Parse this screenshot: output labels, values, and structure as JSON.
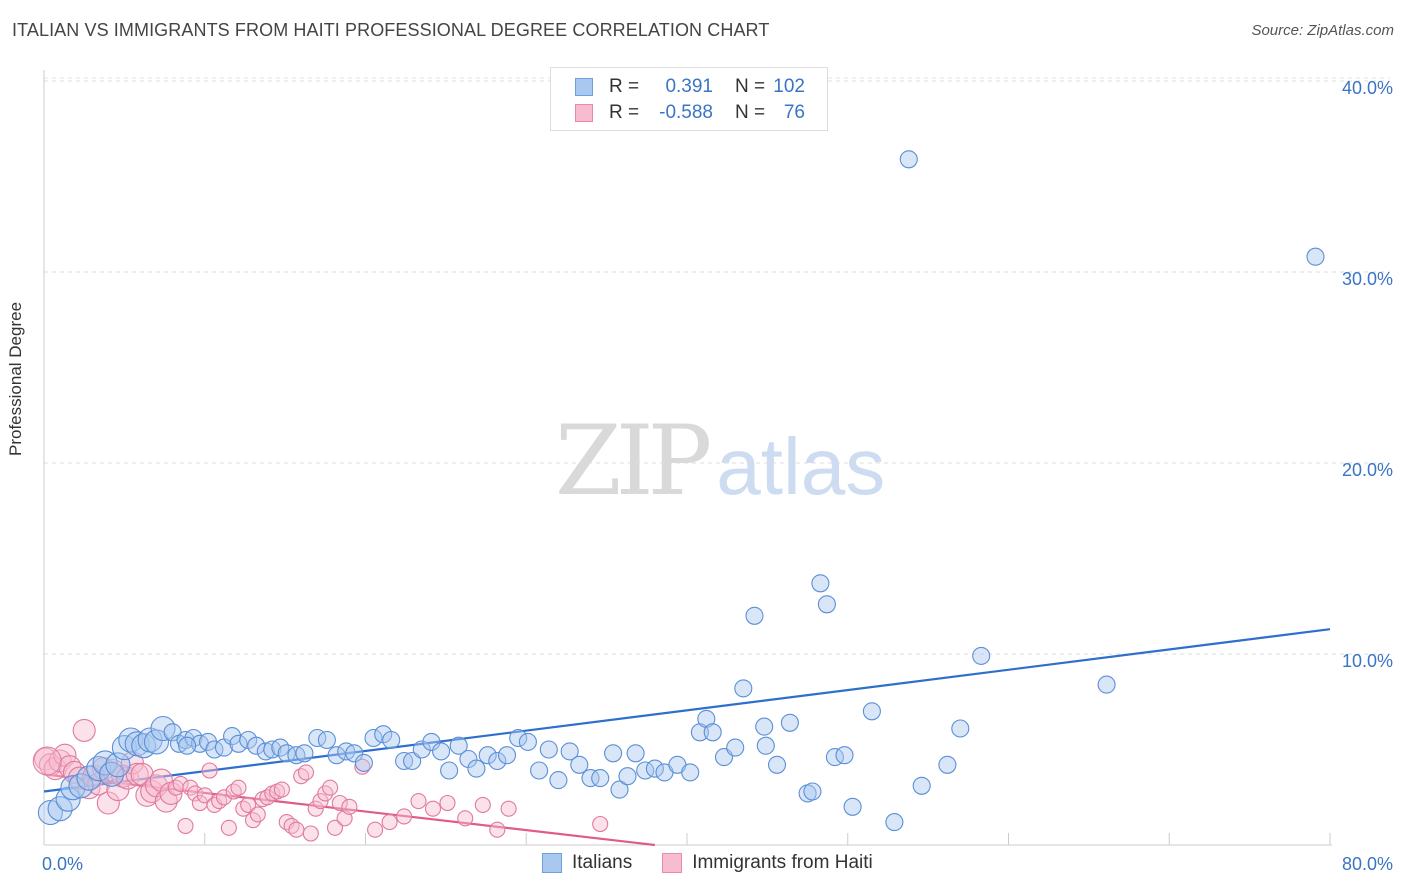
{
  "title": "ITALIAN VS IMMIGRANTS FROM HAITI PROFESSIONAL DEGREE CORRELATION CHART",
  "source": "Source: ZipAtlas.com",
  "watermark": {
    "zip": "ZIP",
    "atlas": "atlas"
  },
  "legend": {
    "rows": [
      {
        "r_label": "R =",
        "r_value": "0.391",
        "n_label": "N =",
        "n_value": "102",
        "color": "#a8c8f0",
        "border": "#6f9fdc"
      },
      {
        "r_label": "R =",
        "r_value": "-0.588",
        "n_label": "N =",
        "n_value": "76",
        "color": "#f7bcd0",
        "border": "#e98aaa"
      }
    ]
  },
  "bottom_legend": [
    {
      "label": "Italians",
      "color": "#a8c8f0",
      "border": "#6f9fdc"
    },
    {
      "label": "Immigrants from Haiti",
      "color": "#f7bcd0",
      "border": "#e98aaa"
    }
  ],
  "chart_data": {
    "type": "scatter",
    "title": "ITALIAN VS IMMIGRANTS FROM HAITI PROFESSIONAL DEGREE CORRELATION CHART",
    "xlabel": "",
    "ylabel": "Professional Degree",
    "xlim": [
      0,
      80
    ],
    "ylim": [
      0,
      42
    ],
    "x_tick_labels": [
      "0.0%",
      "80.0%"
    ],
    "y_ticks": [
      10,
      20,
      30,
      40
    ],
    "y_tick_labels": [
      "10.0%",
      "20.0%",
      "30.0%",
      "40.0%"
    ],
    "grid": true,
    "legend_position": "top-center",
    "series": [
      {
        "name": "Italians",
        "color": "#a8c8f0",
        "edge": "#5b8fd6",
        "trend_color": "#2e6fcc",
        "trend": {
          "x0": 0,
          "y0": 2.8,
          "x1": 80,
          "y1": 11.3
        },
        "points": [
          [
            0.4,
            1.7
          ],
          [
            1.0,
            1.9
          ],
          [
            1.5,
            2.4
          ],
          [
            1.8,
            3.0
          ],
          [
            2.3,
            3.1
          ],
          [
            2.8,
            3.5
          ],
          [
            3.4,
            4.0
          ],
          [
            3.8,
            4.3
          ],
          [
            4.2,
            3.7
          ],
          [
            4.6,
            4.2
          ],
          [
            5.0,
            5.1
          ],
          [
            5.4,
            5.5
          ],
          [
            5.8,
            5.3
          ],
          [
            6.2,
            5.2
          ],
          [
            6.6,
            5.5
          ],
          [
            7.0,
            5.4
          ],
          [
            7.4,
            6.1
          ],
          [
            8.0,
            5.9
          ],
          [
            8.4,
            5.3
          ],
          [
            8.8,
            5.5
          ],
          [
            9.3,
            5.6
          ],
          [
            9.7,
            5.3
          ],
          [
            10.2,
            5.4
          ],
          [
            10.6,
            5.0
          ],
          [
            11.2,
            5.1
          ],
          [
            11.7,
            5.7
          ],
          [
            12.1,
            5.3
          ],
          [
            12.7,
            5.5
          ],
          [
            13.2,
            5.2
          ],
          [
            13.8,
            4.9
          ],
          [
            14.2,
            5.0
          ],
          [
            14.7,
            5.1
          ],
          [
            15.1,
            4.8
          ],
          [
            15.7,
            4.7
          ],
          [
            16.2,
            4.8
          ],
          [
            17.0,
            5.6
          ],
          [
            17.6,
            5.5
          ],
          [
            18.2,
            4.7
          ],
          [
            18.8,
            4.9
          ],
          [
            19.3,
            4.8
          ],
          [
            19.9,
            4.3
          ],
          [
            20.5,
            5.6
          ],
          [
            21.1,
            5.8
          ],
          [
            21.6,
            5.5
          ],
          [
            22.4,
            4.4
          ],
          [
            22.9,
            4.4
          ],
          [
            23.5,
            5.0
          ],
          [
            24.1,
            5.4
          ],
          [
            24.7,
            4.9
          ],
          [
            25.2,
            3.9
          ],
          [
            25.8,
            5.2
          ],
          [
            26.4,
            4.5
          ],
          [
            26.9,
            4.0
          ],
          [
            27.6,
            4.7
          ],
          [
            28.2,
            4.4
          ],
          [
            28.8,
            4.7
          ],
          [
            29.5,
            5.6
          ],
          [
            30.1,
            5.4
          ],
          [
            30.8,
            3.9
          ],
          [
            31.4,
            5.0
          ],
          [
            32.0,
            3.4
          ],
          [
            32.7,
            4.9
          ],
          [
            33.3,
            4.2
          ],
          [
            34.0,
            3.5
          ],
          [
            34.6,
            3.5
          ],
          [
            35.4,
            4.8
          ],
          [
            35.8,
            2.9
          ],
          [
            36.3,
            3.6
          ],
          [
            36.8,
            4.8
          ],
          [
            37.4,
            3.9
          ],
          [
            38.0,
            4.0
          ],
          [
            38.6,
            3.8
          ],
          [
            39.4,
            4.2
          ],
          [
            40.2,
            3.8
          ],
          [
            40.8,
            5.9
          ],
          [
            41.2,
            6.6
          ],
          [
            41.6,
            5.9
          ],
          [
            42.3,
            4.6
          ],
          [
            43.0,
            5.1
          ],
          [
            43.5,
            8.2
          ],
          [
            44.2,
            12.0
          ],
          [
            44.8,
            6.2
          ],
          [
            45.6,
            4.2
          ],
          [
            46.4,
            6.4
          ],
          [
            47.5,
            2.7
          ],
          [
            47.8,
            2.8
          ],
          [
            48.3,
            13.7
          ],
          [
            48.7,
            12.6
          ],
          [
            49.2,
            4.6
          ],
          [
            49.8,
            4.7
          ],
          [
            50.3,
            2.0
          ],
          [
            51.5,
            7.0
          ],
          [
            52.9,
            1.2
          ],
          [
            53.8,
            35.9
          ],
          [
            54.6,
            3.1
          ],
          [
            56.2,
            4.2
          ],
          [
            57.0,
            6.1
          ],
          [
            58.3,
            9.9
          ],
          [
            66.1,
            8.4
          ],
          [
            79.1,
            30.8
          ],
          [
            44.9,
            5.2
          ],
          [
            8.9,
            5.2
          ]
        ]
      },
      {
        "name": "Immigrants from Haiti",
        "color": "#f7bcd0",
        "edge": "#e07a9e",
        "trend_color": "#e05a8a",
        "trend": {
          "x0": 0,
          "y0": 3.7,
          "x1": 38,
          "y1": 0.0
        },
        "points": [
          [
            0.1,
            4.5
          ],
          [
            0.4,
            4.2
          ],
          [
            0.7,
            4.0
          ],
          [
            1.0,
            4.4
          ],
          [
            1.3,
            4.7
          ],
          [
            1.6,
            4.1
          ],
          [
            1.9,
            3.8
          ],
          [
            2.2,
            3.5
          ],
          [
            2.5,
            6.0
          ],
          [
            2.8,
            3.0
          ],
          [
            3.1,
            3.6
          ],
          [
            3.4,
            3.2
          ],
          [
            3.7,
            4.0
          ],
          [
            4.0,
            2.2
          ],
          [
            4.3,
            3.9
          ],
          [
            4.6,
            2.9
          ],
          [
            4.9,
            3.6
          ],
          [
            5.2,
            3.5
          ],
          [
            5.5,
            4.3
          ],
          [
            5.8,
            3.7
          ],
          [
            6.1,
            3.7
          ],
          [
            6.4,
            2.6
          ],
          [
            6.7,
            2.8
          ],
          [
            7.0,
            3.1
          ],
          [
            7.3,
            3.4
          ],
          [
            7.6,
            2.3
          ],
          [
            7.9,
            2.7
          ],
          [
            8.2,
            3.0
          ],
          [
            8.5,
            3.2
          ],
          [
            8.8,
            1.0
          ],
          [
            9.1,
            3.0
          ],
          [
            9.4,
            2.7
          ],
          [
            9.7,
            2.2
          ],
          [
            10.0,
            2.6
          ],
          [
            10.3,
            3.9
          ],
          [
            10.6,
            2.1
          ],
          [
            10.9,
            2.3
          ],
          [
            11.2,
            2.5
          ],
          [
            11.5,
            0.9
          ],
          [
            11.8,
            2.8
          ],
          [
            12.1,
            3.0
          ],
          [
            12.4,
            1.9
          ],
          [
            12.7,
            2.1
          ],
          [
            13.0,
            1.3
          ],
          [
            13.3,
            1.6
          ],
          [
            13.6,
            2.4
          ],
          [
            13.9,
            2.5
          ],
          [
            14.2,
            2.7
          ],
          [
            14.5,
            2.8
          ],
          [
            14.8,
            2.9
          ],
          [
            15.1,
            1.2
          ],
          [
            15.4,
            1.0
          ],
          [
            15.7,
            0.8
          ],
          [
            16.0,
            3.6
          ],
          [
            16.3,
            3.8
          ],
          [
            16.6,
            0.6
          ],
          [
            16.9,
            1.9
          ],
          [
            17.2,
            2.3
          ],
          [
            17.5,
            2.7
          ],
          [
            17.8,
            3.0
          ],
          [
            18.1,
            0.9
          ],
          [
            18.4,
            2.2
          ],
          [
            18.7,
            1.4
          ],
          [
            19.0,
            2.0
          ],
          [
            19.8,
            4.1
          ],
          [
            20.6,
            0.8
          ],
          [
            21.5,
            1.2
          ],
          [
            22.4,
            1.5
          ],
          [
            23.3,
            2.3
          ],
          [
            24.2,
            1.9
          ],
          [
            25.1,
            2.2
          ],
          [
            26.2,
            1.4
          ],
          [
            27.3,
            2.1
          ],
          [
            28.2,
            0.8
          ],
          [
            28.9,
            1.9
          ],
          [
            34.6,
            1.1
          ]
        ]
      }
    ]
  }
}
